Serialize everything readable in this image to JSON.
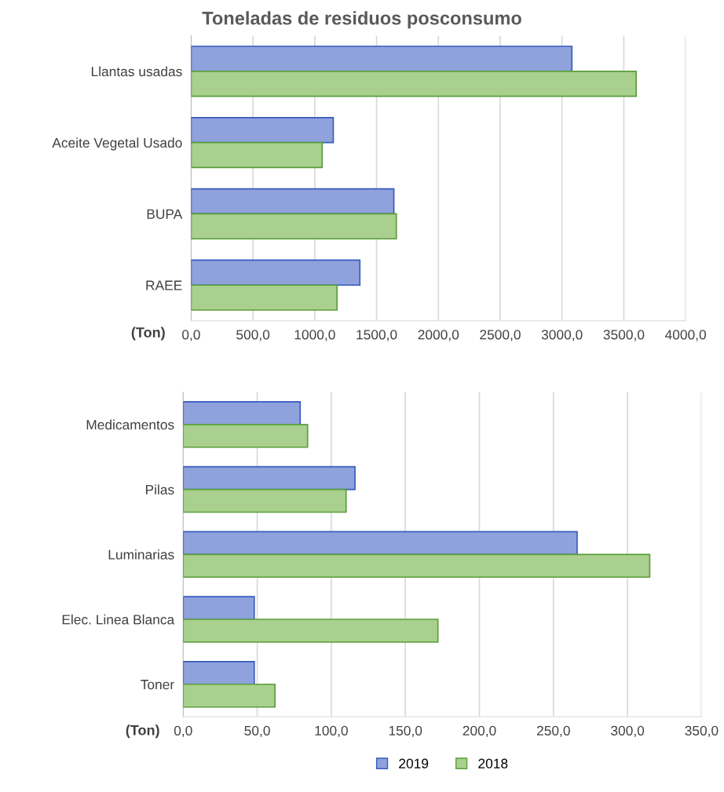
{
  "chart_data": [
    {
      "type": "bar",
      "orientation": "horizontal",
      "title": "Toneladas de residuos posconsumo",
      "xlabel": "(Ton)",
      "categories": [
        "Llantas usadas",
        "Aceite Vegetal Usado",
        "BUPA",
        "RAEE"
      ],
      "series": [
        {
          "name": "2019",
          "color": "#8fa2dc",
          "values": [
            3080,
            1150,
            1640,
            1365
          ]
        },
        {
          "name": "2018",
          "color": "#a9d08e",
          "values": [
            3600,
            1060,
            1660,
            1180
          ]
        }
      ],
      "xlim": [
        0,
        4000
      ],
      "xticks": [
        {
          "value": 0,
          "label": "0,0"
        },
        {
          "value": 500,
          "label": "500,0"
        },
        {
          "value": 1000,
          "label": "1000,0"
        },
        {
          "value": 1500,
          "label": "1500,0"
        },
        {
          "value": 2000,
          "label": "2000,0"
        },
        {
          "value": 2500,
          "label": "2500,0"
        },
        {
          "value": 3000,
          "label": "3000,0"
        },
        {
          "value": 3500,
          "label": "3500,0"
        },
        {
          "value": 4000,
          "label": "4000,0"
        }
      ],
      "grid": "x",
      "legend": "bottom"
    },
    {
      "type": "bar",
      "orientation": "horizontal",
      "xlabel": "(Ton)",
      "categories": [
        "Medicamentos",
        "Pilas",
        "Luminarias",
        "Elec. Linea Blanca",
        "Toner"
      ],
      "series": [
        {
          "name": "2019",
          "color": "#8fa2dc",
          "values": [
            79,
            116,
            266,
            48,
            48
          ]
        },
        {
          "name": "2018",
          "color": "#a9d08e",
          "values": [
            84,
            110,
            315,
            172,
            62
          ]
        }
      ],
      "xlim": [
        0,
        350
      ],
      "xticks": [
        {
          "value": 0,
          "label": "0,0"
        },
        {
          "value": 50,
          "label": "50,0"
        },
        {
          "value": 100,
          "label": "100,0"
        },
        {
          "value": 150,
          "label": "150,0"
        },
        {
          "value": 200,
          "label": "200,0"
        },
        {
          "value": 250,
          "label": "250,0"
        },
        {
          "value": 300,
          "label": "300,0"
        },
        {
          "value": 350,
          "label": "350,0"
        }
      ],
      "grid": "x",
      "legend": "bottom"
    }
  ]
}
